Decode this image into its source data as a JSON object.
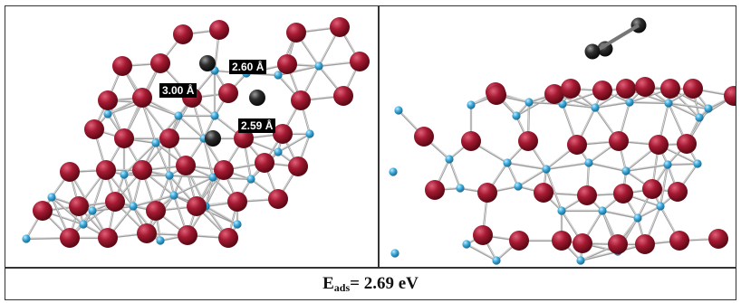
{
  "figure": {
    "left_panel": {
      "distance_labels": [
        "2.60 Å",
        "3.00 Å",
        "2.59 Å"
      ]
    },
    "right_panel": {},
    "caption": {
      "symbol": "E",
      "subscript": "ads",
      "value": "= 2.69 eV"
    }
  },
  "colors": {
    "metal_atom": "#a01830",
    "light_atom": "#3aa8d8",
    "adsorbate_atom": "#2a2a2a",
    "bond": "#b8b8b8",
    "border": "#333333"
  }
}
